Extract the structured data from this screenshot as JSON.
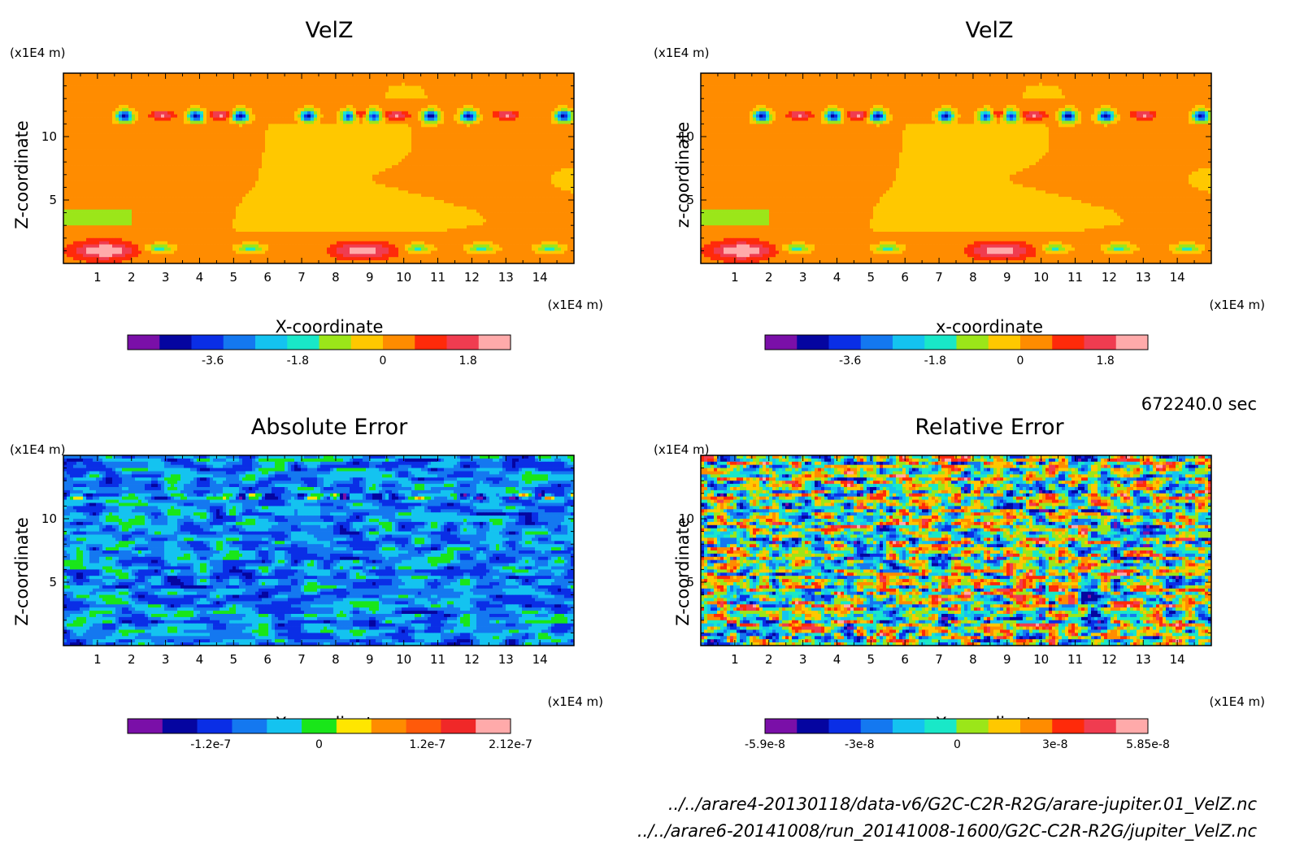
{
  "chart_data": [
    {
      "type": "heatmap",
      "title": "VelZ",
      "xlabel": "X-coordinate",
      "ylabel": "Z-coordinate",
      "x_unit": "(x1E4 m)",
      "y_unit": "(x1E4 m)",
      "xlim": [
        0,
        15
      ],
      "ylim": [
        0,
        15
      ],
      "x_ticks": [
        1,
        2,
        3,
        4,
        5,
        6,
        7,
        8,
        9,
        10,
        11,
        12,
        13,
        14
      ],
      "y_ticks": [
        5,
        10
      ],
      "field": "velz",
      "colorbar": {
        "min": -5.4,
        "max": 2.7,
        "colors": [
          "#7a0fa8",
          "#0505a0",
          "#0a2ee6",
          "#1478f0",
          "#14c3f0",
          "#19e8c8",
          "#9be619",
          "#ffc800",
          "#ff8c00",
          "#ff2a0a",
          "#f03c50",
          "#ffaaaa"
        ],
        "tick_values": [
          -3.6,
          -1.8,
          0,
          1.8
        ],
        "tick_labels": [
          "-3.6",
          "-1.8",
          "0",
          "1.8"
        ]
      }
    },
    {
      "type": "heatmap",
      "title": "VelZ",
      "xlabel": "x-coordinate",
      "ylabel": "z-coordinate",
      "x_unit": "(x1E4 m)",
      "y_unit": "(x1E4 m)",
      "xlim": [
        0,
        15
      ],
      "ylim": [
        0,
        15
      ],
      "x_ticks": [
        1,
        2,
        3,
        4,
        5,
        6,
        7,
        8,
        9,
        10,
        11,
        12,
        13,
        14
      ],
      "y_ticks": [
        5,
        10
      ],
      "field": "velz",
      "colorbar": {
        "min": -5.4,
        "max": 2.7,
        "colors": [
          "#7a0fa8",
          "#0505a0",
          "#0a2ee6",
          "#1478f0",
          "#14c3f0",
          "#19e8c8",
          "#9be619",
          "#ffc800",
          "#ff8c00",
          "#ff2a0a",
          "#f03c50",
          "#ffaaaa"
        ],
        "tick_values": [
          -3.6,
          -1.8,
          0,
          1.8
        ],
        "tick_labels": [
          "-3.6",
          "-1.8",
          "0",
          "1.8"
        ]
      }
    },
    {
      "type": "heatmap",
      "title": "Absolute Error",
      "xlabel": "X-coordinate",
      "ylabel": "Z-coordinate",
      "x_unit": "(x1E4 m)",
      "y_unit": "(x1E4 m)",
      "xlim": [
        0,
        15
      ],
      "ylim": [
        0,
        15
      ],
      "x_ticks": [
        1,
        2,
        3,
        4,
        5,
        6,
        7,
        8,
        9,
        10,
        11,
        12,
        13,
        14
      ],
      "y_ticks": [
        5,
        10
      ],
      "field": "abserr",
      "colorbar": {
        "min": -2.12e-07,
        "max": 2.12e-07,
        "colors": [
          "#7a0fa8",
          "#0505a0",
          "#0a2ee6",
          "#1478f0",
          "#14c3f0",
          "#19e619",
          "#ffe600",
          "#ff8c00",
          "#ff5a0a",
          "#f02828",
          "#ffaaaa"
        ],
        "tick_values": [
          -1.2e-07,
          0,
          1.2e-07,
          2.12e-07
        ],
        "tick_labels": [
          "-1.2e-7",
          "0",
          "1.2e-7",
          "2.12e-7"
        ]
      }
    },
    {
      "type": "heatmap",
      "title": "Relative Error",
      "xlabel": "X-coordinate",
      "ylabel": "Z-coordinate",
      "x_unit": "(x1E4 m)",
      "y_unit": "(x1E4 m)",
      "xlim": [
        0,
        15
      ],
      "ylim": [
        0,
        15
      ],
      "x_ticks": [
        1,
        2,
        3,
        4,
        5,
        6,
        7,
        8,
        9,
        10,
        11,
        12,
        13,
        14
      ],
      "y_ticks": [
        5,
        10
      ],
      "field": "relerr",
      "colorbar": {
        "min": -5.9e-08,
        "max": 5.85e-08,
        "colors": [
          "#7a0fa8",
          "#0505a0",
          "#0a2ee6",
          "#1478f0",
          "#14c3f0",
          "#19e8c8",
          "#9be619",
          "#ffc800",
          "#ff8c00",
          "#ff2a0a",
          "#f03c50",
          "#ffaaaa"
        ],
        "tick_values": [
          -5.9e-08,
          -3e-08,
          0,
          3e-08,
          5.85e-08
        ],
        "tick_labels": [
          "-5.9e-8",
          "-3e-8",
          "0",
          "3e-8",
          "5.85e-8"
        ]
      }
    }
  ],
  "time_label": "672240.0 sec",
  "footer": {
    "file1": "../../arare4-20130118/data-v6/G2C-C2R-R2G/arare-jupiter.01_VelZ.nc",
    "file2": "../../arare6-20141008/run_20141008-1600/G2C-C2R-R2G/jupiter_VelZ.nc"
  }
}
